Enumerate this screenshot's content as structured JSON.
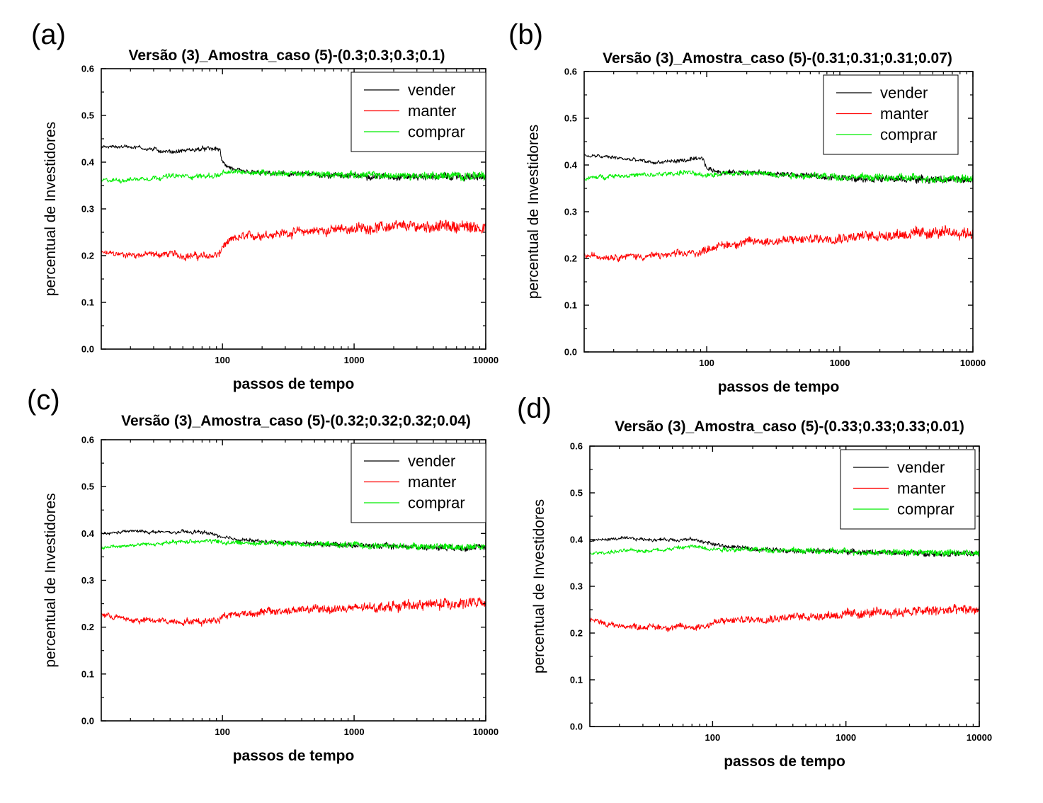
{
  "chart_data": [
    {
      "panel_label": "(a)",
      "type": "line",
      "title": "Versão (3)_Amostra_caso (5)-(0.3;0.3;0.3;0.1)",
      "xlabel": "passos de tempo",
      "ylabel": "percentual de Investidores",
      "xscale": "log",
      "xlim": [
        12,
        10000
      ],
      "ylim": [
        0,
        0.6
      ],
      "xticks": [
        100,
        1000,
        10000
      ],
      "xtick_labels": [
        "100",
        "1000",
        "10000"
      ],
      "yticks": [
        0,
        0.1,
        0.2,
        0.3,
        0.4,
        0.5,
        0.6
      ],
      "ytick_labels": [
        "0.0",
        "0.1",
        "0.2",
        "0.3",
        "0.4",
        "0.5",
        "0.6"
      ],
      "legend": "top-right",
      "grid": false,
      "x": [
        12,
        20,
        40,
        70,
        95,
        100,
        130,
        200,
        500,
        1000,
        2000,
        5000,
        10000
      ],
      "series": [
        {
          "name": "vender",
          "color": "#000000",
          "noise": 0.006,
          "values": [
            0.432,
            0.434,
            0.422,
            0.428,
            0.428,
            0.398,
            0.38,
            0.376,
            0.373,
            0.371,
            0.369,
            0.369,
            0.368
          ]
        },
        {
          "name": "manter",
          "color": "#ff0000",
          "noise": 0.01,
          "values": [
            0.205,
            0.202,
            0.203,
            0.198,
            0.202,
            0.22,
            0.238,
            0.245,
            0.253,
            0.258,
            0.262,
            0.263,
            0.26
          ]
        },
        {
          "name": "comprar",
          "color": "#00ee00",
          "noise": 0.007,
          "values": [
            0.36,
            0.363,
            0.37,
            0.37,
            0.372,
            0.375,
            0.38,
            0.378,
            0.374,
            0.373,
            0.371,
            0.371,
            0.37
          ]
        }
      ]
    },
    {
      "panel_label": "(b)",
      "type": "line",
      "title": "Versão (3)_Amostra_caso (5)-(0.31;0.31;0.31;0.07)",
      "xlabel": "passos de tempo",
      "ylabel": "percentual de Investidores",
      "xscale": "log",
      "xlim": [
        12,
        10000
      ],
      "ylim": [
        0,
        0.6
      ],
      "xticks": [
        100,
        1000,
        10000
      ],
      "xtick_labels": [
        "100",
        "1000",
        "10000"
      ],
      "yticks": [
        0,
        0.1,
        0.2,
        0.3,
        0.4,
        0.5,
        0.6
      ],
      "ytick_labels": [
        "0.0",
        "0.1",
        "0.2",
        "0.3",
        "0.4",
        "0.5",
        "0.6"
      ],
      "legend": "top-right",
      "grid": false,
      "x": [
        12,
        20,
        40,
        70,
        95,
        100,
        130,
        200,
        500,
        1000,
        2000,
        5000,
        10000
      ],
      "series": [
        {
          "name": "vender",
          "color": "#000000",
          "noise": 0.006,
          "values": [
            0.42,
            0.416,
            0.405,
            0.41,
            0.412,
            0.392,
            0.385,
            0.384,
            0.378,
            0.373,
            0.37,
            0.369,
            0.368
          ]
        },
        {
          "name": "manter",
          "color": "#ff0000",
          "noise": 0.01,
          "values": [
            0.205,
            0.205,
            0.205,
            0.21,
            0.215,
            0.222,
            0.228,
            0.235,
            0.24,
            0.245,
            0.25,
            0.255,
            0.255
          ]
        },
        {
          "name": "comprar",
          "color": "#00ee00",
          "noise": 0.007,
          "values": [
            0.37,
            0.378,
            0.378,
            0.385,
            0.375,
            0.38,
            0.382,
            0.383,
            0.378,
            0.375,
            0.373,
            0.371,
            0.37
          ]
        }
      ]
    },
    {
      "panel_label": "(c)",
      "type": "line",
      "title": "Versão (3)_Amostra_caso (5)-(0.32;0.32;0.32;0.04)",
      "xlabel": "passos de tempo",
      "ylabel": "percentual de Investidores",
      "xscale": "log",
      "xlim": [
        12,
        10000
      ],
      "ylim": [
        0,
        0.6
      ],
      "xticks": [
        100,
        1000,
        10000
      ],
      "xtick_labels": [
        "100",
        "1000",
        "10000"
      ],
      "yticks": [
        0,
        0.1,
        0.2,
        0.3,
        0.4,
        0.5,
        0.6
      ],
      "ytick_labels": [
        "0.0",
        "0.1",
        "0.2",
        "0.3",
        "0.4",
        "0.5",
        "0.6"
      ],
      "legend": "top-right",
      "grid": false,
      "x": [
        12,
        20,
        40,
        70,
        95,
        100,
        130,
        200,
        500,
        1000,
        2000,
        5000,
        10000
      ],
      "series": [
        {
          "name": "vender",
          "color": "#000000",
          "noise": 0.005,
          "values": [
            0.398,
            0.405,
            0.402,
            0.403,
            0.395,
            0.39,
            0.388,
            0.382,
            0.378,
            0.375,
            0.372,
            0.37,
            0.37
          ]
        },
        {
          "name": "manter",
          "color": "#ff0000",
          "noise": 0.009,
          "values": [
            0.228,
            0.215,
            0.213,
            0.212,
            0.218,
            0.225,
            0.228,
            0.232,
            0.238,
            0.24,
            0.245,
            0.25,
            0.252
          ]
        },
        {
          "name": "comprar",
          "color": "#00ee00",
          "noise": 0.006,
          "values": [
            0.37,
            0.375,
            0.38,
            0.385,
            0.382,
            0.38,
            0.38,
            0.38,
            0.377,
            0.375,
            0.373,
            0.372,
            0.372
          ]
        }
      ]
    },
    {
      "panel_label": "(d)",
      "type": "line",
      "title": "Versão (3)_Amostra_caso (5)-(0.33;0.33;0.33;0.01)",
      "xlabel": "passos de tempo",
      "ylabel": "percentual de Investidores",
      "xscale": "log",
      "xlim": [
        12,
        10000
      ],
      "ylim": [
        0,
        0.6
      ],
      "xticks": [
        100,
        1000,
        10000
      ],
      "xtick_labels": [
        "100",
        "1000",
        "10000"
      ],
      "yticks": [
        0,
        0.1,
        0.2,
        0.3,
        0.4,
        0.5,
        0.6
      ],
      "ytick_labels": [
        "0.0",
        "0.1",
        "0.2",
        "0.3",
        "0.4",
        "0.5",
        "0.6"
      ],
      "legend": "top-right",
      "grid": false,
      "x": [
        12,
        20,
        40,
        70,
        95,
        100,
        130,
        200,
        500,
        1000,
        2000,
        5000,
        10000
      ],
      "series": [
        {
          "name": "vender",
          "color": "#000000",
          "noise": 0.005,
          "values": [
            0.398,
            0.402,
            0.4,
            0.4,
            0.393,
            0.39,
            0.385,
            0.38,
            0.376,
            0.374,
            0.372,
            0.37,
            0.369
          ]
        },
        {
          "name": "manter",
          "color": "#ff0000",
          "noise": 0.009,
          "values": [
            0.228,
            0.215,
            0.213,
            0.212,
            0.218,
            0.222,
            0.226,
            0.23,
            0.236,
            0.24,
            0.244,
            0.248,
            0.25
          ]
        },
        {
          "name": "comprar",
          "color": "#00ee00",
          "noise": 0.006,
          "values": [
            0.37,
            0.375,
            0.378,
            0.385,
            0.382,
            0.38,
            0.38,
            0.379,
            0.376,
            0.374,
            0.373,
            0.372,
            0.371
          ]
        }
      ]
    }
  ]
}
